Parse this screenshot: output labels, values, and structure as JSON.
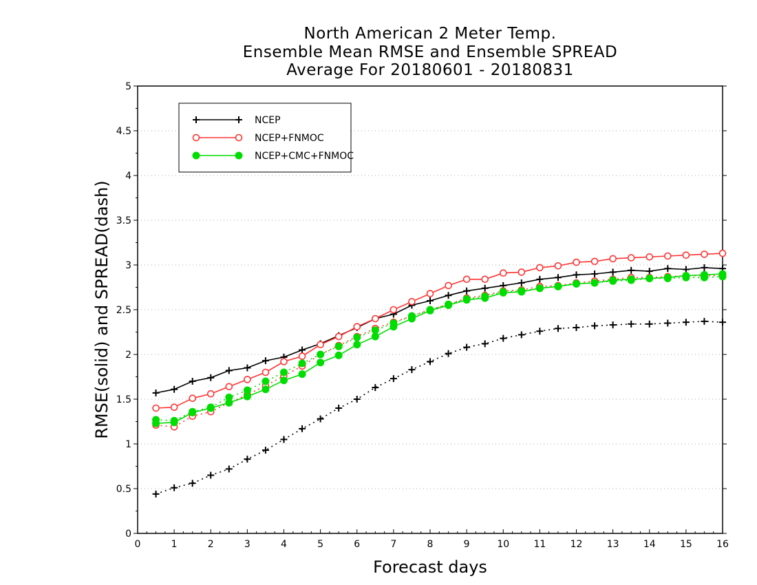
{
  "chart_data": {
    "type": "line",
    "title_lines": [
      "North American 2 Meter Temp.",
      "Ensemble Mean RMSE and Ensemble SPREAD",
      "Average For 20180601 - 20180831"
    ],
    "xlabel": "Forecast days",
    "ylabel": "RMSE(solid) and SPREAD(dash)",
    "xlim": [
      0,
      16
    ],
    "ylim": [
      0,
      5
    ],
    "x_ticks": [
      "0",
      "1",
      "2",
      "3",
      "4",
      "5",
      "6",
      "7",
      "8",
      "9",
      "10",
      "11",
      "12",
      "13",
      "14",
      "15",
      "16"
    ],
    "y_ticks": [
      "0",
      "0.5",
      "1",
      "1.5",
      "2",
      "2.5",
      "3",
      "3.5",
      "4",
      "4.5",
      "5"
    ],
    "grid": "horizontal dotted",
    "legend_position": "top-left",
    "x": [
      0.5,
      1,
      1.5,
      2,
      2.5,
      3,
      3.5,
      4,
      4.5,
      5,
      5.5,
      6,
      6.5,
      7,
      7.5,
      8,
      8.5,
      9,
      9.5,
      10,
      10.5,
      11,
      11.5,
      12,
      12.5,
      13,
      13.5,
      14,
      14.5,
      15,
      15.5,
      16
    ],
    "series": [
      {
        "name": "NCEP",
        "color": "#000000",
        "marker": "plus",
        "rmse": [
          1.57,
          1.61,
          1.7,
          1.74,
          1.82,
          1.85,
          1.93,
          1.97,
          2.05,
          2.12,
          2.21,
          2.3,
          2.4,
          2.45,
          2.55,
          2.6,
          2.66,
          2.71,
          2.74,
          2.77,
          2.8,
          2.84,
          2.86,
          2.89,
          2.9,
          2.92,
          2.94,
          2.93,
          2.96,
          2.95,
          2.97,
          2.96
        ],
        "spread": [
          0.44,
          0.51,
          0.56,
          0.65,
          0.72,
          0.83,
          0.93,
          1.05,
          1.17,
          1.28,
          1.4,
          1.5,
          1.63,
          1.73,
          1.83,
          1.92,
          2.01,
          2.08,
          2.12,
          2.18,
          2.22,
          2.26,
          2.29,
          2.3,
          2.32,
          2.33,
          2.34,
          2.34,
          2.35,
          2.36,
          2.37,
          2.36
        ]
      },
      {
        "name": "NCEP+FNMOC",
        "color": "#ff3333",
        "marker": "open-circle",
        "rmse": [
          1.4,
          1.41,
          1.51,
          1.56,
          1.64,
          1.72,
          1.8,
          1.92,
          1.98,
          2.11,
          2.2,
          2.31,
          2.4,
          2.5,
          2.59,
          2.68,
          2.77,
          2.84,
          2.84,
          2.91,
          2.92,
          2.97,
          2.99,
          3.03,
          3.04,
          3.07,
          3.08,
          3.09,
          3.1,
          3.11,
          3.12,
          3.13
        ],
        "spread": [
          1.21,
          1.19,
          1.31,
          1.36,
          1.46,
          1.55,
          1.65,
          1.76,
          1.87,
          2.0,
          2.1,
          2.2,
          2.29,
          2.36,
          2.43,
          2.5,
          2.56,
          2.63,
          2.66,
          2.71,
          2.72,
          2.76,
          2.77,
          2.8,
          2.82,
          2.84,
          2.86,
          2.86,
          2.87,
          2.88,
          2.88,
          2.88
        ]
      },
      {
        "name": "NCEP+CMC+FNMOC",
        "color": "#00dd00",
        "marker": "filled-circle",
        "rmse": [
          1.23,
          1.24,
          1.35,
          1.4,
          1.46,
          1.53,
          1.61,
          1.71,
          1.78,
          1.91,
          1.99,
          2.11,
          2.2,
          2.31,
          2.4,
          2.49,
          2.55,
          2.61,
          2.63,
          2.69,
          2.7,
          2.74,
          2.76,
          2.79,
          2.8,
          2.83,
          2.84,
          2.85,
          2.86,
          2.88,
          2.89,
          2.9
        ],
        "spread": [
          1.27,
          1.26,
          1.36,
          1.41,
          1.52,
          1.6,
          1.7,
          1.8,
          1.9,
          2.0,
          2.09,
          2.19,
          2.27,
          2.35,
          2.43,
          2.5,
          2.56,
          2.62,
          2.65,
          2.7,
          2.71,
          2.74,
          2.76,
          2.79,
          2.8,
          2.82,
          2.83,
          2.85,
          2.85,
          2.86,
          2.86,
          2.87
        ]
      }
    ]
  }
}
